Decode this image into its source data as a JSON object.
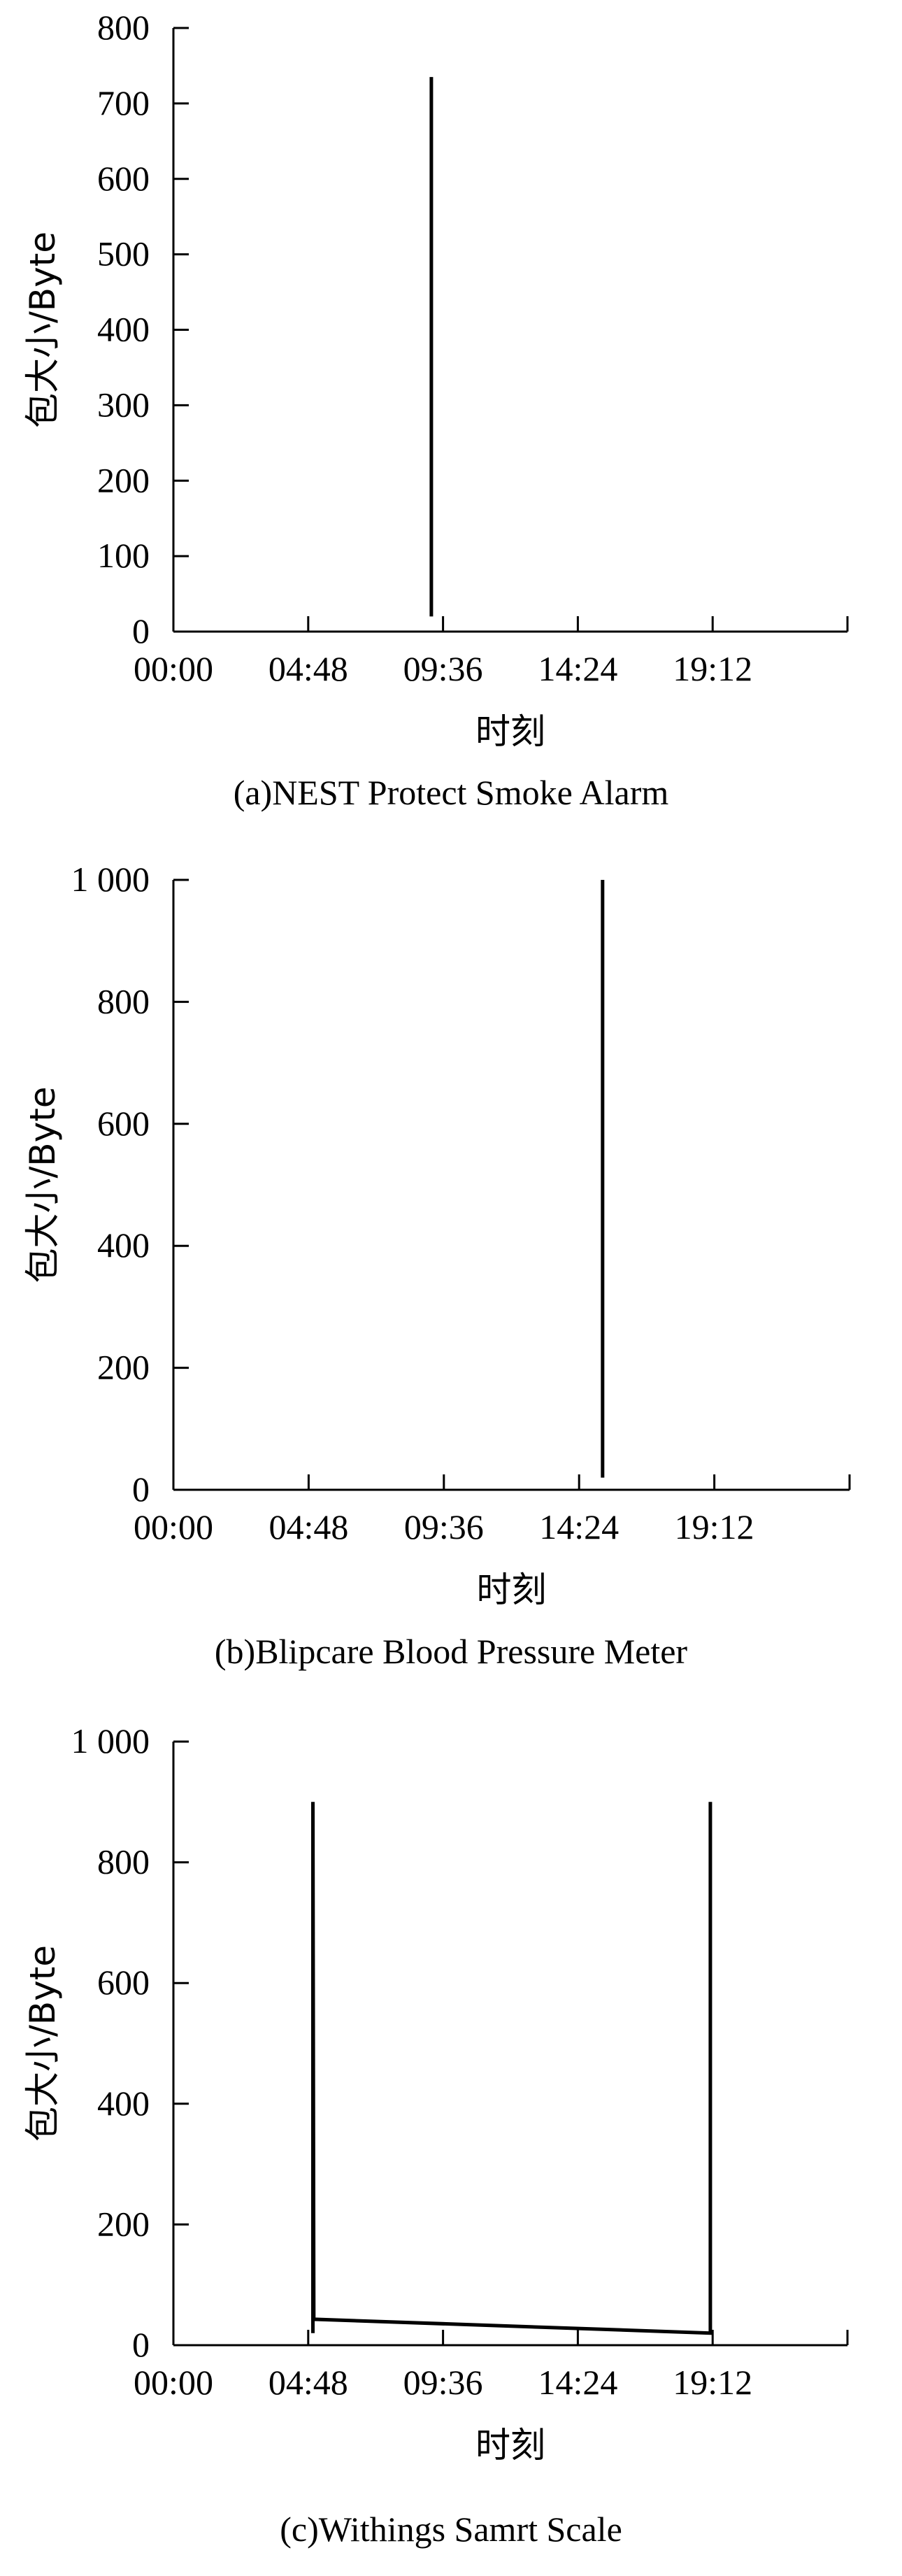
{
  "chart_data": [
    {
      "type": "line",
      "caption": "(a)NEST Protect Smoke Alarm",
      "xlabel": "时刻",
      "ylabel": "包大小/Byte",
      "x_ticks": [
        "00:00",
        "04:48",
        "09:36",
        "14:24",
        "19:12"
      ],
      "y_ticks": [
        "0",
        "100",
        "200",
        "300",
        "400",
        "500",
        "600",
        "700",
        "800"
      ],
      "xlim": [
        "00:00",
        "24:00"
      ],
      "ylim": [
        0,
        800
      ],
      "series": [
        {
          "x": [
            "09:11",
            "09:11"
          ],
          "y": [
            20,
            735
          ]
        }
      ]
    },
    {
      "type": "line",
      "caption": "(b)Blipcare Blood Pressure Meter",
      "xlabel": "时刻",
      "ylabel": "包大小/Byte",
      "x_ticks": [
        "00:00",
        "04:48",
        "09:36",
        "14:24",
        "19:12"
      ],
      "y_ticks": [
        "0",
        "200",
        "400",
        "600",
        "800",
        "1 000"
      ],
      "xlim": [
        "00:00",
        "24:00"
      ],
      "ylim": [
        0,
        1000
      ],
      "series": [
        {
          "x": [
            "15:14",
            "15:14"
          ],
          "y": [
            20,
            1000
          ]
        }
      ]
    },
    {
      "type": "line",
      "caption": "(c)Withings Samrt Scale",
      "xlabel": "时刻",
      "ylabel": "包大小/Byte",
      "x_ticks": [
        "00:00",
        "04:48",
        "09:36",
        "14:24",
        "19:12"
      ],
      "y_ticks": [
        "0",
        "200",
        "400",
        "600",
        "800",
        "1 000"
      ],
      "xlim": [
        "00:00",
        "24:00"
      ],
      "ylim": [
        0,
        1000
      ],
      "series": [
        {
          "x": [
            "04:58",
            "04:58",
            "05:00",
            "19:07",
            "19:07"
          ],
          "y": [
            20,
            900,
            43,
            20,
            900
          ]
        }
      ]
    }
  ]
}
